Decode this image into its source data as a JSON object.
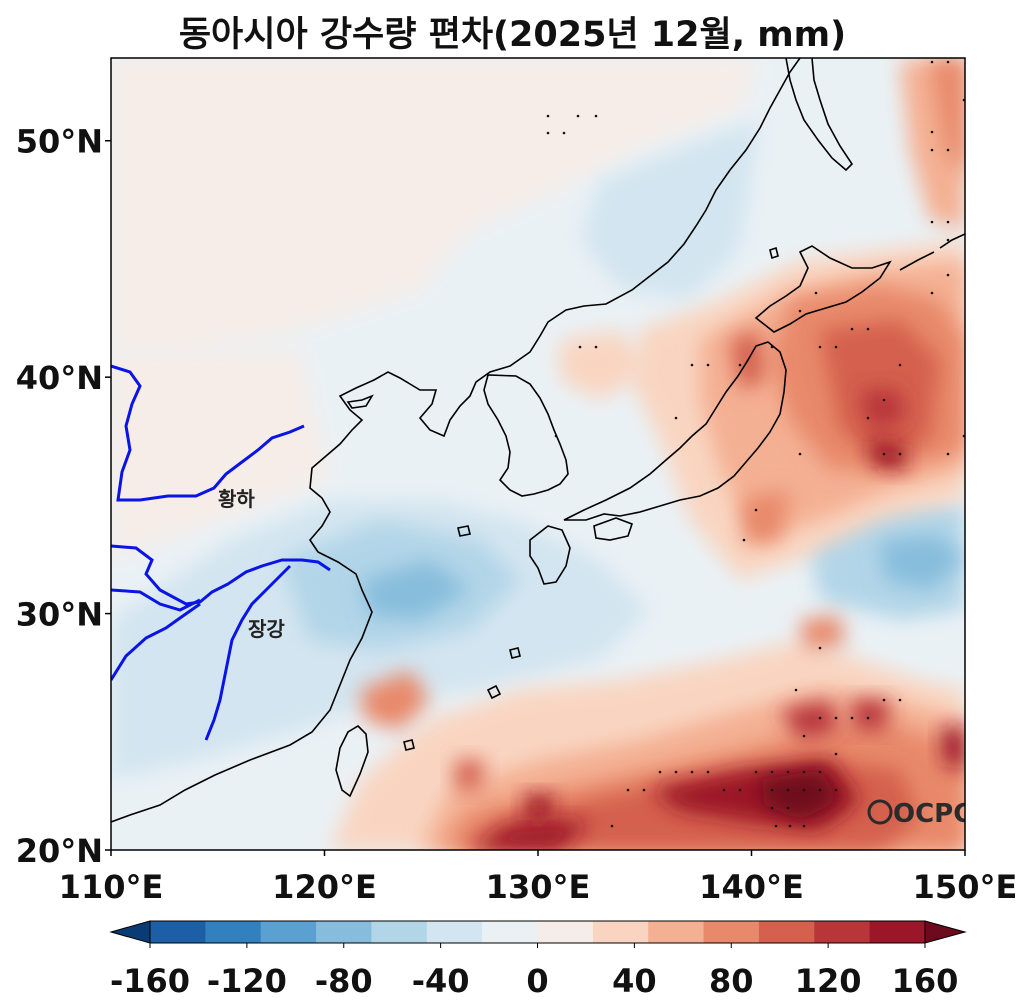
{
  "title": "동아시아 강수량 편차(2025년 12월, mm)",
  "map": {
    "lon_range": [
      110,
      150
    ],
    "lat_range": [
      20,
      53.5
    ],
    "lon_ticks": [
      "110°E",
      "120°E",
      "130°E",
      "140°E",
      "150°E"
    ],
    "lat_ticks": [
      "20°N",
      "30°N",
      "40°N",
      "50°N"
    ],
    "river_labels": {
      "yellow_river": "황하",
      "yangtze": "장강"
    },
    "logo": "OCPC",
    "river_color": "#0a14e6"
  },
  "colorbar": {
    "ticks": [
      "-160",
      "-120",
      "-80",
      "-40",
      "0",
      "40",
      "80",
      "120",
      "160"
    ],
    "colors": [
      "#0a3b75",
      "#1c5fa6",
      "#3280be",
      "#5aa0d0",
      "#87bddc",
      "#b2d5e8",
      "#d3e5f0",
      "#eaf1f5",
      "#f6ede8",
      "#f9d5c1",
      "#f4b093",
      "#e8896b",
      "#d4604d",
      "#b8363a",
      "#9b1628",
      "#6d0a1e"
    ],
    "vmin": -160,
    "vmax": 160
  }
}
